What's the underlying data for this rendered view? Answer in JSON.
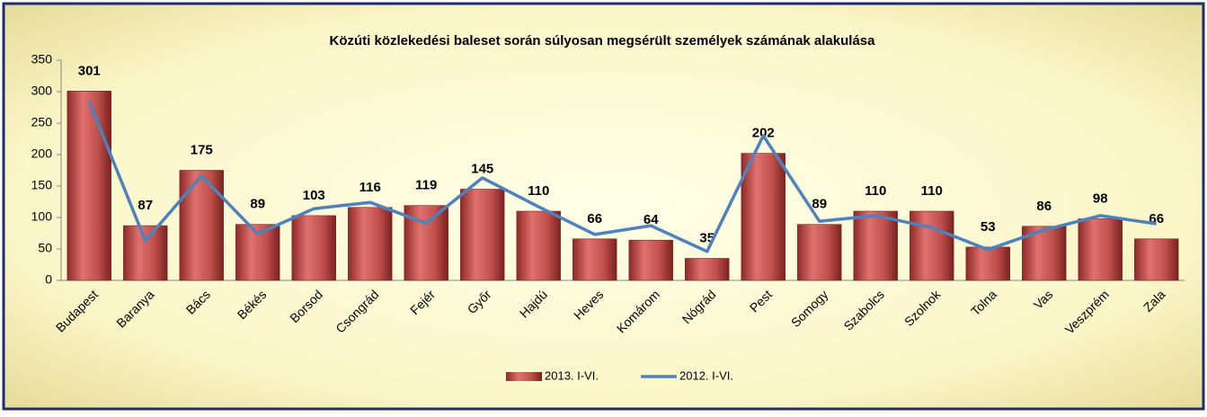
{
  "chart_data": {
    "type": "bar",
    "title": "Közúti közlekedési baleset során súlyosan megsérült személyek számának alakulása",
    "categories": [
      "Budapest",
      "Baranya",
      "Bács",
      "Békés",
      "Borsod",
      "Csongrád",
      "Fejér",
      "Győr",
      "Hajdú",
      "Heves",
      "Komárom",
      "Nógrád",
      "Pest",
      "Somogy",
      "Szabolcs",
      "Szolnok",
      "Tolna",
      "Vas",
      "Veszprém",
      "Zala"
    ],
    "series": [
      {
        "name": "2013. I-VI.",
        "type": "bar",
        "color": "#c0504d",
        "values": [
          301,
          87,
          175,
          89,
          103,
          116,
          119,
          145,
          110,
          66,
          64,
          35,
          202,
          89,
          110,
          110,
          53,
          86,
          98,
          66
        ]
      },
      {
        "name": "2012. I-VI.",
        "type": "line",
        "color": "#4f81bd",
        "values": [
          284,
          63,
          166,
          74,
          114,
          124,
          91,
          163,
          117,
          73,
          87,
          46,
          230,
          94,
          103,
          84,
          49,
          80,
          103,
          90
        ]
      }
    ],
    "ylim": [
      0,
      350
    ],
    "yticks": [
      0,
      50,
      100,
      150,
      200,
      250,
      300,
      350
    ],
    "legend": "bottom"
  }
}
